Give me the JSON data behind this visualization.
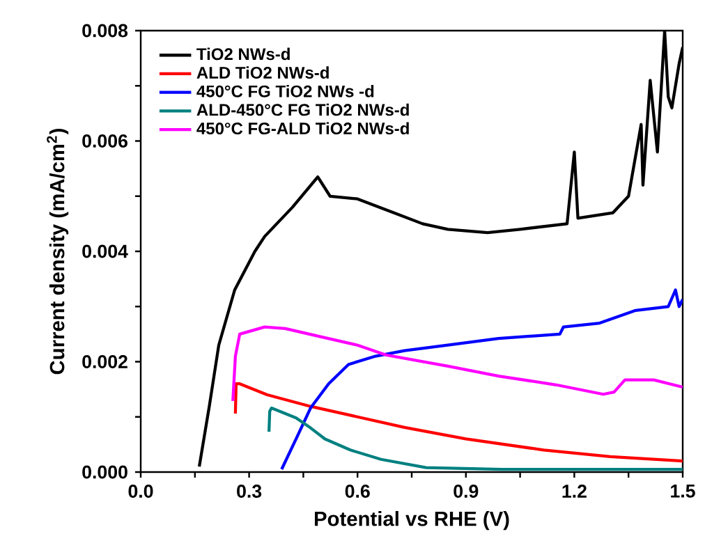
{
  "chart_data": {
    "type": "line",
    "xlabel": "Potential vs RHE (V)",
    "ylabel": "Current density (mA/cm$^{2}$)",
    "xlim": [
      0,
      1.5
    ],
    "ylim": [
      0,
      0.008
    ],
    "xticks": [
      {
        "value": 0,
        "label": "0.0"
      },
      {
        "value": 0.15,
        "label": null
      },
      0.3,
      {
        "value": 0.45,
        "label": null
      },
      0.6,
      {
        "value": 0.75,
        "label": null
      },
      0.9,
      {
        "value": 1.05,
        "label": null
      },
      1.2,
      {
        "value": 1.35,
        "label": null
      },
      1.5
    ],
    "yticks": [
      {
        "value": 0,
        "label": "0.000"
      },
      {
        "value": 0.001,
        "label": null
      },
      0.002,
      {
        "value": 0.003,
        "label": null
      },
      0.004,
      {
        "value": 0.005,
        "label": null
      },
      0.006,
      {
        "value": 0.007,
        "label": null
      },
      0.008
    ],
    "legend": "top left",
    "grid": false,
    "marker": "none",
    "line_style": "solid",
    "series": [
      {
        "name": "TiO2 NWs-d",
        "color": "#000000",
        "x": [
          0.162,
          0.19,
          0.216,
          0.26,
          0.316,
          0.343,
          0.42,
          0.49,
          0.524,
          0.6,
          0.7,
          0.78,
          0.85,
          0.96,
          1.05,
          1.18,
          1.2,
          1.21,
          1.307,
          1.35,
          1.385,
          1.39,
          1.41,
          1.43,
          1.45,
          1.46,
          1.47,
          1.49,
          1.5
        ],
        "values": [
          0.0001,
          0.0012,
          0.0023,
          0.0033,
          0.004,
          0.00427,
          0.0048,
          0.00535,
          0.005,
          0.00495,
          0.0047,
          0.0045,
          0.0044,
          0.00434,
          0.0044,
          0.0045,
          0.0058,
          0.0046,
          0.0047,
          0.005,
          0.0063,
          0.0052,
          0.0071,
          0.0058,
          0.008,
          0.0068,
          0.0066,
          0.0074,
          0.0077
        ]
      },
      {
        "name": "ALD TiO2 NWs-d",
        "color": "#ff0000",
        "x": [
          0.262,
          0.264,
          0.274,
          0.35,
          0.47,
          0.6,
          0.73,
          0.9,
          1.115,
          1.3,
          1.5
        ],
        "values": [
          0.00106,
          0.0016,
          0.0016,
          0.0014,
          0.00119,
          0.001,
          0.00081,
          0.0006,
          0.0004,
          0.00028,
          0.0002
        ]
      },
      {
        "name": "450°C FG TiO2 NWs -d",
        "color": "#0000ff",
        "x": [
          0.39,
          0.43,
          0.47,
          0.52,
          0.575,
          0.65,
          0.73,
          0.85,
          0.99,
          1.16,
          1.17,
          1.27,
          1.37,
          1.46,
          1.48,
          1.49,
          1.5
        ],
        "values": [
          5e-05,
          0.0006,
          0.00116,
          0.0016,
          0.00195,
          0.0021,
          0.0022,
          0.0023,
          0.00242,
          0.0025,
          0.00263,
          0.0027,
          0.00293,
          0.003,
          0.0033,
          0.003,
          0.00313
        ]
      },
      {
        "name": "ALD-450°C FG TiO2 NWs-d",
        "color": "#008080",
        "x": [
          0.355,
          0.357,
          0.362,
          0.43,
          0.47,
          0.51,
          0.58,
          0.665,
          0.79,
          1.0,
          1.5
        ],
        "values": [
          0.00073,
          0.0011,
          0.00116,
          0.00098,
          0.0008,
          0.0006,
          0.0004,
          0.00023,
          8e-05,
          5e-05,
          5e-05
        ]
      },
      {
        "name": "450°C FG-ALD TiO2 NWs-d",
        "color": "#ff00ff",
        "x": [
          0.255,
          0.262,
          0.274,
          0.343,
          0.4,
          0.5,
          0.6,
          0.68,
          0.85,
          0.99,
          1.15,
          1.28,
          1.31,
          1.34,
          1.42,
          1.5
        ],
        "values": [
          0.00129,
          0.0021,
          0.0025,
          0.00263,
          0.0026,
          0.00245,
          0.0023,
          0.00212,
          0.00192,
          0.00174,
          0.00158,
          0.00141,
          0.00145,
          0.00167,
          0.00167,
          0.00154
        ]
      }
    ]
  }
}
